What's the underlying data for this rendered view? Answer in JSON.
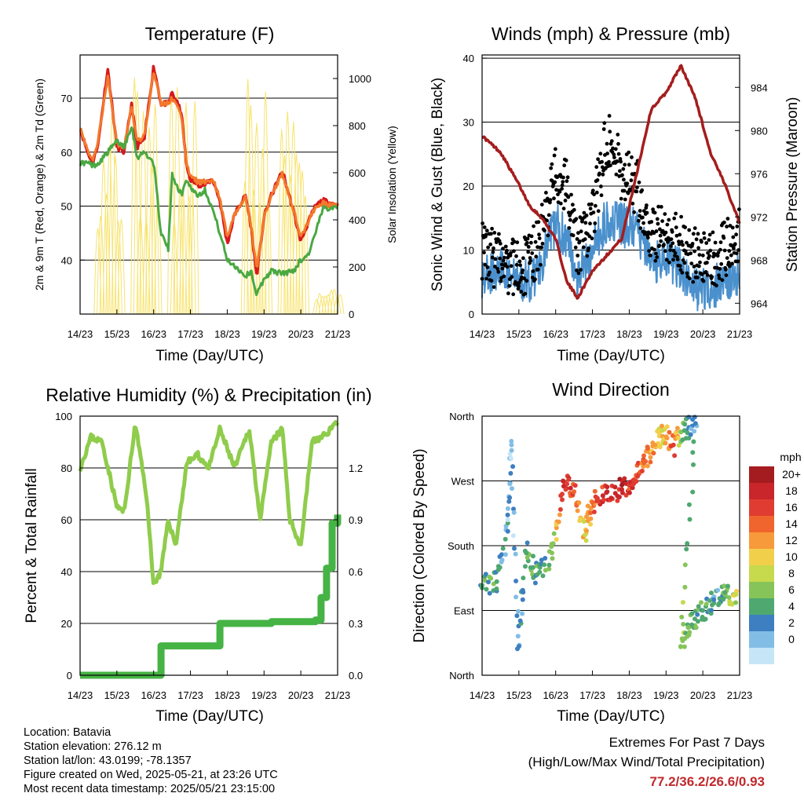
{
  "common": {
    "day_ticks": [
      "14/23",
      "15/23",
      "16/23",
      "17/23",
      "18/23",
      "19/23",
      "20/23",
      "21/23"
    ],
    "xlabel": "Time (Day/UTC)"
  },
  "chart_data": [
    {
      "type": "line",
      "title": "Temperature (F)",
      "ylabel": "2m & 9m T (Red, Orange) & 2m Td (Green)",
      "ylabel_right": "Solar Insolation (Yellow)",
      "ylim": [
        30,
        78
      ],
      "yticks": [
        "40",
        "50",
        "60",
        "70"
      ],
      "ylim_right": [
        0,
        1100
      ],
      "yticks_right": [
        "0",
        "200",
        "400",
        "600",
        "800",
        "1000"
      ],
      "x_days": [
        0,
        0.2,
        0.35,
        0.5,
        0.75,
        1.0,
        1.2,
        1.4,
        1.55,
        1.75,
        2.0,
        2.2,
        2.4,
        2.5,
        2.75,
        2.9,
        3.0,
        3.2,
        3.4,
        3.6,
        3.8,
        4.0,
        4.2,
        4.5,
        4.65,
        4.8,
        5.0,
        5.2,
        5.5,
        5.8,
        6.0,
        6.2,
        6.4,
        6.6,
        7.0
      ],
      "series": [
        {
          "name": "2m T",
          "color": "#d7191c",
          "values": [
            64.5,
            60,
            58,
            62,
            75.5,
            61,
            60,
            69,
            61,
            62.5,
            76,
            69,
            69,
            71,
            67.5,
            57,
            55,
            54,
            54,
            55,
            51,
            43,
            48.5,
            52,
            46,
            37,
            48,
            52,
            56.5,
            49,
            43.5,
            47,
            50,
            51,
            50.2
          ]
        },
        {
          "name": "9m T",
          "color": "#f4792b",
          "values": [
            64.5,
            60.5,
            58.5,
            62.5,
            74,
            61.5,
            61,
            68.5,
            62,
            63,
            75,
            69,
            69,
            70,
            67,
            57.5,
            55.5,
            54.5,
            54.5,
            55,
            51.5,
            44,
            48.5,
            51.5,
            46.5,
            38,
            48,
            52,
            56,
            49.5,
            44,
            47,
            50,
            50.5,
            50
          ]
        },
        {
          "name": "2m Td",
          "color": "#4aa843",
          "values": [
            58,
            58,
            57.5,
            58,
            60,
            62,
            61,
            65,
            59,
            60,
            58,
            45,
            42,
            56,
            52,
            55,
            53.5,
            52,
            53,
            49.5,
            45,
            40,
            39,
            37,
            38,
            33.5,
            36.5,
            38,
            37.5,
            38,
            40,
            41,
            45,
            49.5,
            50
          ]
        }
      ],
      "solar_peaks": [
        {
          "day": 0.7,
          "value": 1040
        },
        {
          "day": 1.7,
          "value": 1020
        },
        {
          "day": 2.7,
          "value": 1000
        },
        {
          "day": 4.7,
          "value": 1070
        },
        {
          "day": 5.7,
          "value": 1050
        },
        {
          "day": 6.65,
          "value": 120
        }
      ]
    },
    {
      "type": "line",
      "title": "Winds (mph) & Pressure (mb)",
      "ylabel": "Sonic Wind & Gust (Blue, Black)",
      "ylabel_right": "Station Pressure (Maroon)",
      "ylim": [
        0,
        40.5
      ],
      "yticks": [
        "0",
        "10",
        "20",
        "30",
        "40"
      ],
      "ylim_right": [
        963,
        987
      ],
      "yticks_right": [
        "964",
        "968",
        "972",
        "976",
        "980",
        "984"
      ],
      "x_days": [
        0,
        0.5,
        1.0,
        1.3,
        1.6,
        2.0,
        2.3,
        2.6,
        3.0,
        3.4,
        3.8,
        4.2,
        4.6,
        5.0,
        5.4,
        5.8,
        6.2,
        6.6,
        7.0
      ],
      "series": [
        {
          "name": "Wind",
          "color": "#4a90cd",
          "values": [
            6,
            7,
            5,
            5,
            8,
            14,
            12,
            6,
            10,
            15,
            14,
            13,
            8,
            9,
            7,
            4,
            4,
            5,
            6
          ]
        },
        {
          "name": "Gust",
          "color": "#000000",
          "values": [
            10,
            8,
            7,
            8,
            12,
            22,
            20,
            10,
            15,
            28,
            22,
            20,
            12,
            13,
            11,
            9,
            8,
            10,
            13
          ]
        },
        {
          "name": "Pressure",
          "color": "#a51d1d",
          "values": [
            979.5,
            978,
            975,
            973,
            972,
            970,
            966,
            964.5,
            967,
            968.5,
            970,
            976,
            982,
            983.5,
            986,
            983,
            978,
            975,
            971.5
          ]
        }
      ]
    },
    {
      "type": "line",
      "title": "Relative Humidity (%) & Precipitation (in)",
      "ylabel": "Percent & Total Rainfall",
      "ylim": [
        0,
        100
      ],
      "yticks": [
        "0",
        "20",
        "40",
        "60",
        "80",
        "100"
      ],
      "ylim_right": [
        0,
        1.5
      ],
      "yticks_right": [
        "0.0",
        "0.3",
        "0.6",
        "0.9",
        "1.2"
      ],
      "x_days": [
        0,
        0.3,
        0.6,
        1.0,
        1.2,
        1.5,
        1.8,
        2.0,
        2.2,
        2.4,
        2.6,
        2.9,
        3.2,
        3.5,
        3.8,
        4.2,
        4.6,
        4.9,
        5.2,
        5.5,
        5.7,
        6.0,
        6.3,
        6.6,
        7.0
      ],
      "series": [
        {
          "name": "Relative Humidity",
          "color": "#8fcc4c",
          "values": [
            80,
            92,
            90,
            65,
            63,
            97,
            70,
            35,
            40,
            60,
            50,
            82,
            85,
            80,
            95,
            80,
            95,
            60,
            90,
            95,
            60,
            50,
            90,
            92,
            98
          ]
        },
        {
          "name": "Total Rainfall",
          "color": "#46b345",
          "steps": [
            {
              "day": 0,
              "value": 0.0
            },
            {
              "day": 2.2,
              "value": 0.17
            },
            {
              "day": 3.8,
              "value": 0.3
            },
            {
              "day": 5.2,
              "value": 0.31
            },
            {
              "day": 6.0,
              "value": 0.31
            },
            {
              "day": 6.4,
              "value": 0.32
            },
            {
              "day": 6.55,
              "value": 0.45
            },
            {
              "day": 6.7,
              "value": 0.62
            },
            {
              "day": 6.85,
              "value": 0.88
            },
            {
              "day": 7.0,
              "value": 0.93
            }
          ]
        }
      ]
    },
    {
      "type": "scatter",
      "title": "Wind Direction",
      "ylabel": "Direction (Colored By Speed)",
      "yticks": [
        "North",
        "East",
        "South",
        "West",
        "North"
      ],
      "ylim": [
        0,
        360
      ],
      "colorbar_title": "mph",
      "colorbar_labels": [
        "20+",
        "18",
        "16",
        "14",
        "12",
        "10",
        "8",
        "6",
        "4",
        "2",
        "0"
      ],
      "colorbar_colors": [
        "#a51c20",
        "#c8262a",
        "#e03c31",
        "#f0652d",
        "#f79a3b",
        "#f2cf4b",
        "#c7d94c",
        "#86c45a",
        "#4fa870",
        "#3d7fc0",
        "#82bde6",
        "#c6e5f7"
      ],
      "points": [
        {
          "day": 0.0,
          "dir": 125,
          "spd": 6
        },
        {
          "day": 0.4,
          "dir": 130,
          "spd": 5
        },
        {
          "day": 0.7,
          "dir": 200,
          "spd": 3
        },
        {
          "day": 0.8,
          "dir": 320,
          "spd": 2
        },
        {
          "day": 1.0,
          "dir": 40,
          "spd": 3
        },
        {
          "day": 1.2,
          "dir": 170,
          "spd": 6
        },
        {
          "day": 1.5,
          "dir": 140,
          "spd": 5
        },
        {
          "day": 1.9,
          "dir": 170,
          "spd": 7
        },
        {
          "day": 2.2,
          "dir": 270,
          "spd": 18
        },
        {
          "day": 2.5,
          "dir": 255,
          "spd": 15
        },
        {
          "day": 2.8,
          "dir": 195,
          "spd": 10
        },
        {
          "day": 3.0,
          "dir": 240,
          "spd": 14
        },
        {
          "day": 3.4,
          "dir": 255,
          "spd": 18
        },
        {
          "day": 3.8,
          "dir": 258,
          "spd": 18
        },
        {
          "day": 4.1,
          "dir": 265,
          "spd": 17
        },
        {
          "day": 4.4,
          "dir": 295,
          "spd": 14
        },
        {
          "day": 4.7,
          "dir": 320,
          "spd": 12
        },
        {
          "day": 4.9,
          "dir": 340,
          "spd": 10
        },
        {
          "day": 5.2,
          "dir": 320,
          "spd": 16
        },
        {
          "day": 5.5,
          "dir": 340,
          "spd": 5
        },
        {
          "day": 5.8,
          "dir": 350,
          "spd": 4
        },
        {
          "day": 5.4,
          "dir": 40,
          "spd": 8
        },
        {
          "day": 5.7,
          "dir": 70,
          "spd": 6
        },
        {
          "day": 6.0,
          "dir": 90,
          "spd": 5
        },
        {
          "day": 6.3,
          "dir": 105,
          "spd": 4
        },
        {
          "day": 6.6,
          "dir": 115,
          "spd": 6
        },
        {
          "day": 6.9,
          "dir": 112,
          "spd": 10
        }
      ]
    }
  ],
  "info": {
    "location": "Location: Batavia",
    "elevation": "Station elevation: 276.12 m",
    "latlon": "Station lat/lon: 43.0199; -78.1357",
    "created": "Figure created on Wed, 2025-05-21, at 23:26 UTC",
    "timestamp": "Most recent data timestamp: 2025/05/21 23:15:00"
  },
  "extremes": {
    "title": "Extremes For Past 7 Days",
    "subtitle": "(High/Low/Max Wind/Total Precipitation)",
    "values": "77.2/36.2/26.6/0.93"
  }
}
